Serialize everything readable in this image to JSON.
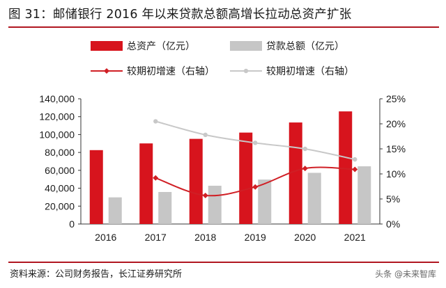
{
  "header": {
    "title": "图 31：邮储银行 2016 年以来贷款总额高增长拉动总资产扩张"
  },
  "footer": {
    "source": "资料来源：公司财务报告，长江证券研究所",
    "watermark": "头条 @未来智库"
  },
  "colors": {
    "accent": "#b01620",
    "asset_bar": "#d7141d",
    "loan_bar": "#c6c6c6",
    "asset_line": "#d01f25",
    "loan_line": "#c8c8c8"
  },
  "chart_data": {
    "type": "bar",
    "title": "图 31：邮储银行 2016 年以来贷款总额高增长拉动总资产扩张",
    "categories": [
      "2016",
      "2017",
      "2018",
      "2019",
      "2020",
      "2021"
    ],
    "series": [
      {
        "name": "总资产（亿元）",
        "type": "bar",
        "axis": "left",
        "values": [
          82600,
          90100,
          95200,
          102200,
          113500,
          125900
        ]
      },
      {
        "name": "贷款总额（亿元）",
        "type": "bar",
        "axis": "left",
        "values": [
          29800,
          35800,
          42800,
          49700,
          57200,
          64500
        ]
      },
      {
        "name": "较期初增速（右轴）",
        "type": "line",
        "axis": "right",
        "values": [
          null,
          9.2,
          5.7,
          7.4,
          11.1,
          10.9
        ]
      },
      {
        "name": "较期初增速（右轴）",
        "type": "line",
        "axis": "right",
        "values": [
          null,
          20.5,
          17.8,
          16.2,
          15.0,
          12.9
        ]
      }
    ],
    "y_left": {
      "ylim": [
        0,
        140000
      ],
      "ticks": [
        "0",
        "20,000",
        "40,000",
        "60,000",
        "80,000",
        "100,000",
        "120,000",
        "140,000"
      ]
    },
    "y_right": {
      "ylim": [
        0,
        25
      ],
      "ticks": [
        "0%",
        "5%",
        "10%",
        "15%",
        "20%",
        "25%"
      ]
    },
    "xlabel": "",
    "ylabel": "",
    "grid": false,
    "legend_position": "top"
  }
}
